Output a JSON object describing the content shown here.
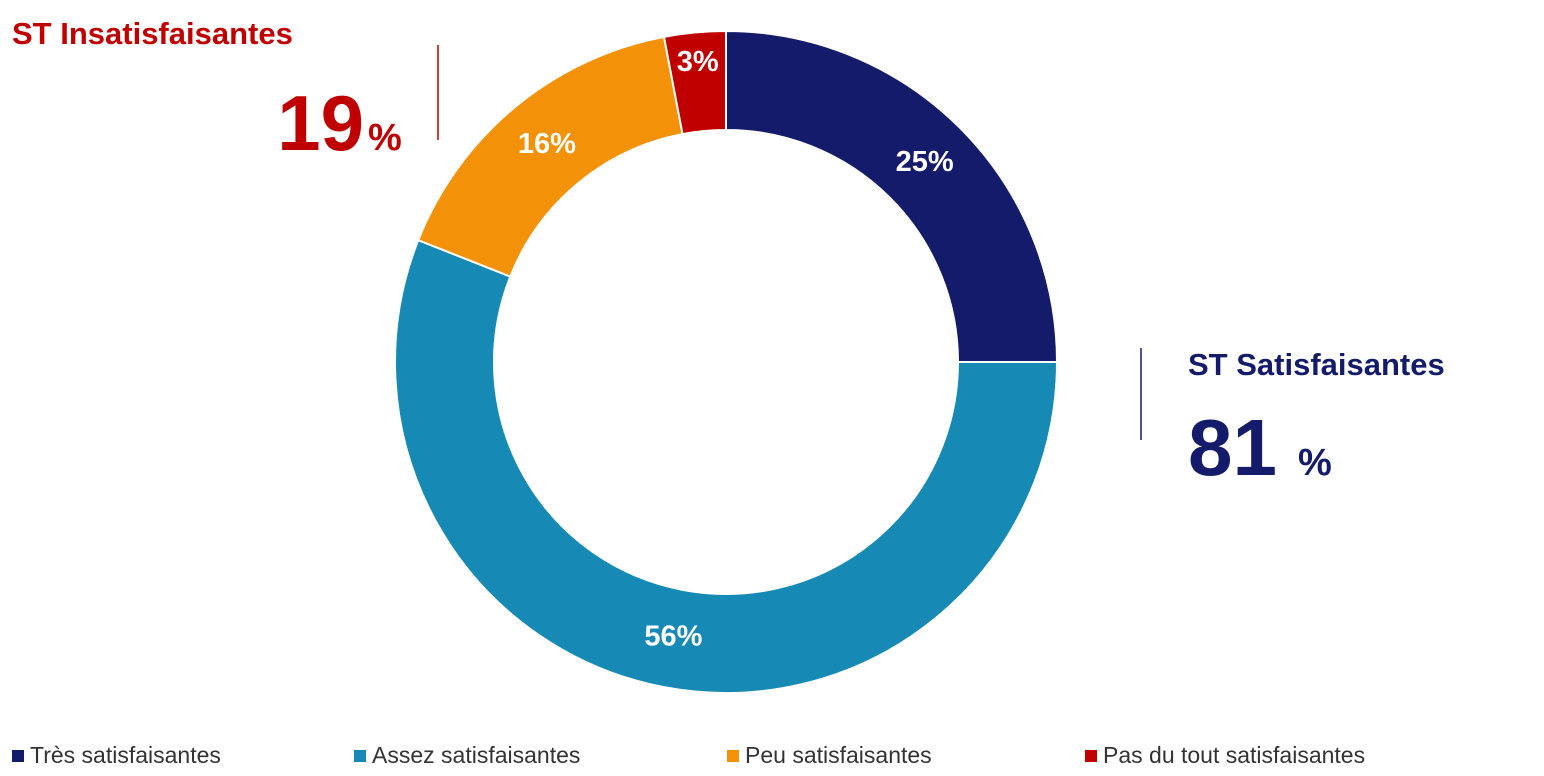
{
  "chart_data": {
    "type": "donut",
    "categories": [
      "Très satisfaisantes",
      "Assez satisfaisantes",
      "Peu satisfaisantes",
      "Pas du tout satisfaisantes"
    ],
    "values": [
      25,
      56,
      16,
      3
    ],
    "value_labels": [
      "25%",
      "56%",
      "16%",
      "3%"
    ],
    "colors": [
      "#141b6a",
      "#1689b5",
      "#f39208",
      "#c00000"
    ],
    "legend": "bottom",
    "annotations": [
      {
        "text": "ST Insatisfaisantes",
        "value": 19,
        "unit": "%",
        "color": "#c00000"
      },
      {
        "text": "ST Satisfaisantes",
        "value": 81,
        "unit": "%",
        "color": "#141b6a"
      }
    ]
  }
}
